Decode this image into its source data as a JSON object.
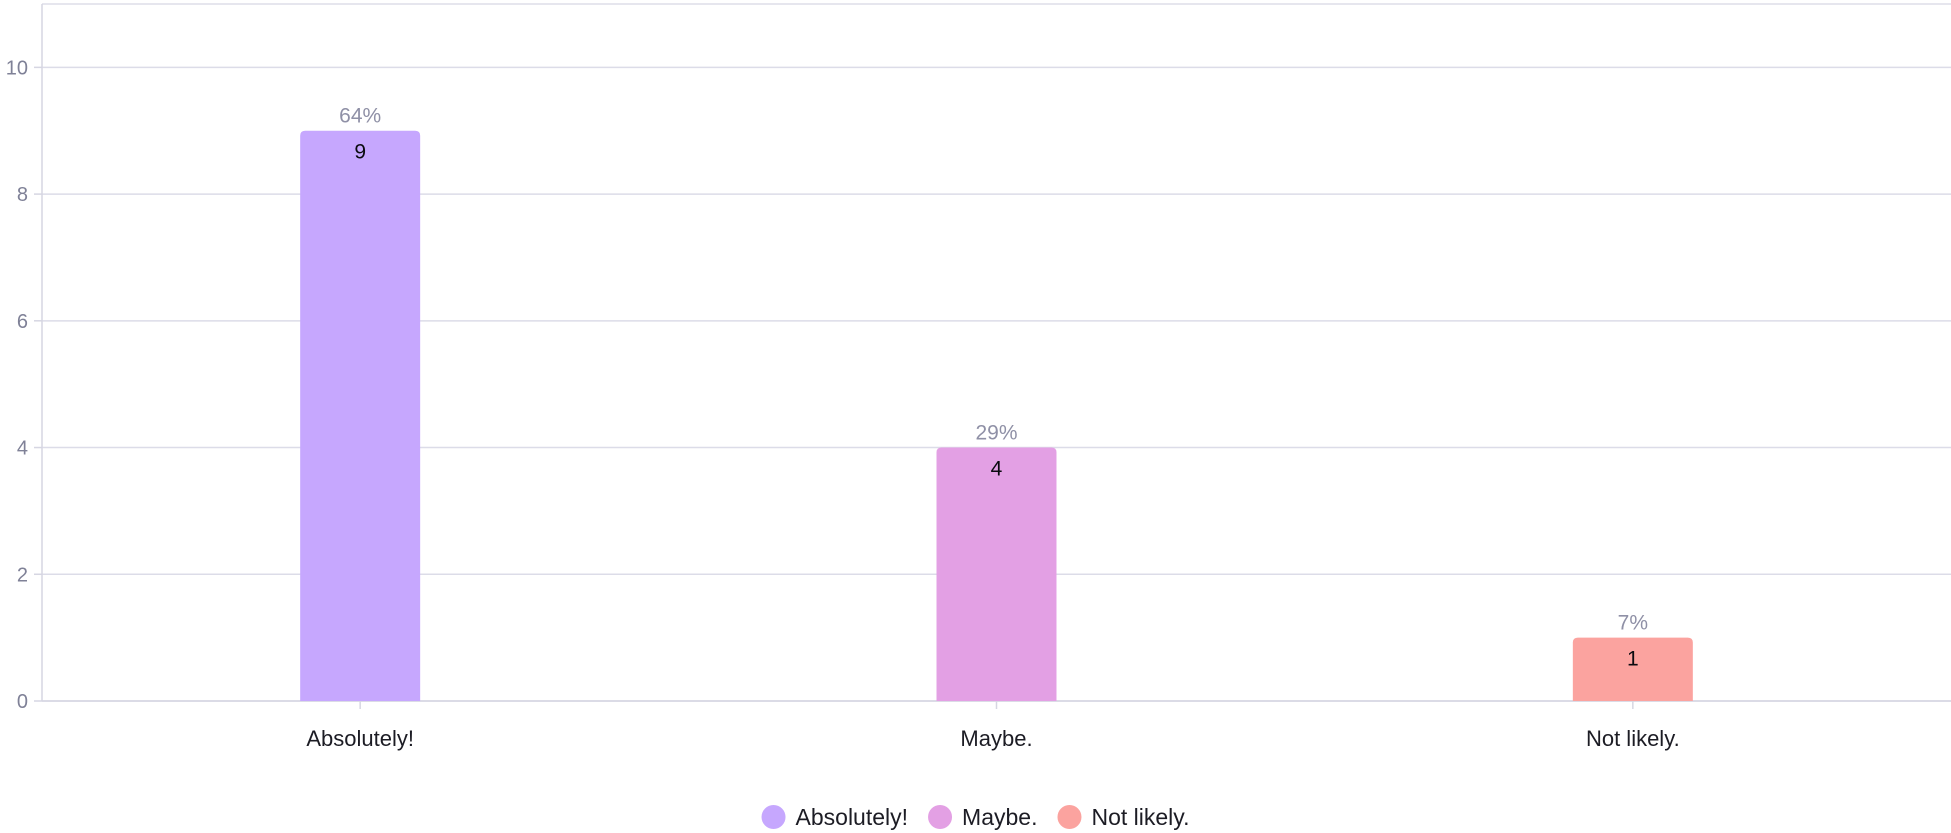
{
  "chart_data": {
    "type": "bar",
    "categories": [
      "Absolutely!",
      "Maybe.",
      "Not likely."
    ],
    "values": [
      9,
      4,
      1
    ],
    "percent_labels": [
      "64%",
      "29%",
      "7%"
    ],
    "value_labels": [
      "9",
      "4",
      "1"
    ],
    "colors": [
      "#c6a7fe",
      "#e3a0e4",
      "#fba39f"
    ],
    "ylim": [
      0,
      11
    ],
    "yticks": [
      0,
      2,
      4,
      6,
      8,
      10
    ],
    "ytick_labels": [
      "0",
      "2",
      "4",
      "6",
      "8",
      "10"
    ],
    "grid": true,
    "legend": {
      "placement": "bottom-center",
      "entries": [
        "Absolutely!",
        "Maybe.",
        "Not likely."
      ]
    }
  }
}
